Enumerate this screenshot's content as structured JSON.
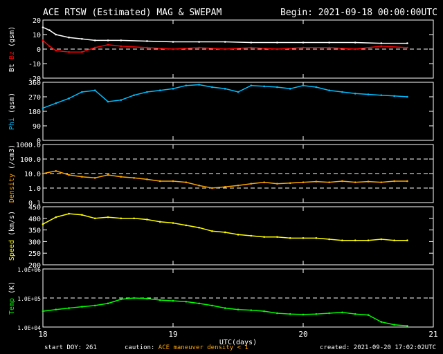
{
  "header": {
    "title": "ACE RTSW (Estimated) MAG & SWEPAM",
    "begin": "Begin: 2021-09-18 00:00:00UTC"
  },
  "footer": {
    "start_doy": "start DOY: 261",
    "caution_label": "caution:",
    "caution_maneuver": "ACE maneuver",
    "caution_density": "density < 1",
    "created": "created: 2021-09-20 17:02:02UTC"
  },
  "colors": {
    "bt": "#ffffff",
    "bz": "#ff0000",
    "phi": "#00bfff",
    "density": "#ffa500",
    "speed": "#ffff00",
    "temp": "#00ff00",
    "axis": "#ffffff",
    "dashed": "#ffffff"
  },
  "chart_data": {
    "type": "scatter",
    "x_axis": {
      "label": "UTC(days)",
      "ticks": [
        "18",
        "19",
        "20",
        "21"
      ],
      "range": [
        18,
        21
      ]
    },
    "panels": [
      {
        "id": "mag",
        "ylabel": [
          "Bt",
          "Bz",
          "(gsm)"
        ],
        "ylabel_colors": [
          "#ffffff",
          "#ff0000",
          "#ffffff"
        ],
        "ylim": [
          -20,
          20
        ],
        "yticks": [
          "20",
          "10",
          "0",
          "-10",
          "-20"
        ],
        "dashed": [
          0
        ],
        "series": [
          {
            "name": "Bt",
            "color": "#ffffff",
            "x": [
              18.0,
              18.05,
              18.1,
              18.2,
              18.3,
              18.4,
              18.5,
              18.6,
              18.8,
              19.0,
              19.2,
              19.4,
              19.6,
              19.8,
              20.0,
              20.2,
              20.4,
              20.6,
              20.8
            ],
            "y": [
              15,
              13,
              10,
              8,
              7,
              6,
              6,
              6,
              5.5,
              5,
              5,
              5,
              4.5,
              4.5,
              4.5,
              4.5,
              4.5,
              4,
              4
            ]
          },
          {
            "name": "Bz",
            "color": "#ff0000",
            "x": [
              18.0,
              18.05,
              18.1,
              18.2,
              18.3,
              18.4,
              18.5,
              18.6,
              18.8,
              19.0,
              19.2,
              19.4,
              19.6,
              19.8,
              20.0,
              20.2,
              20.4,
              20.6,
              20.8
            ],
            "y": [
              6,
              2,
              -1,
              -2,
              -2,
              1,
              3,
              2,
              1,
              0,
              1,
              0,
              1,
              0,
              1,
              1,
              0,
              2,
              1
            ]
          }
        ]
      },
      {
        "id": "phi",
        "ylabel": [
          "Phi",
          "(gsm)"
        ],
        "ylabel_colors": [
          "#00bfff",
          "#ffffff"
        ],
        "ylim": [
          0,
          360
        ],
        "yticks": [
          "360",
          "270",
          "180",
          "90",
          "0"
        ],
        "dashed": [],
        "series": [
          {
            "name": "Phi",
            "color": "#00bfff",
            "x": [
              18.0,
              18.1,
              18.2,
              18.3,
              18.4,
              18.5,
              18.6,
              18.7,
              18.8,
              18.9,
              19.0,
              19.1,
              19.2,
              19.3,
              19.4,
              19.5,
              19.6,
              19.7,
              19.8,
              19.9,
              20.0,
              20.1,
              20.2,
              20.3,
              20.4,
              20.5,
              20.6,
              20.7,
              20.8
            ],
            "y": [
              200,
              230,
              260,
              300,
              310,
              240,
              250,
              280,
              300,
              310,
              320,
              340,
              345,
              330,
              320,
              300,
              340,
              335,
              330,
              320,
              340,
              330,
              310,
              300,
              290,
              285,
              280,
              275,
              270
            ]
          }
        ]
      },
      {
        "id": "density",
        "ylabel": [
          "Density",
          "(/cm3)"
        ],
        "ylabel_colors": [
          "#ffa500",
          "#ffffff"
        ],
        "scale": "log",
        "ylim": [
          0.1,
          1000
        ],
        "yticks": [
          "1000.0",
          "100.0",
          "10.0",
          "1.0",
          "0.1"
        ],
        "dashed": [
          1.0,
          10.0,
          100.0
        ],
        "series": [
          {
            "name": "Density",
            "color": "#ffa500",
            "x": [
              18.0,
              18.1,
              18.2,
              18.3,
              18.4,
              18.5,
              18.6,
              18.7,
              18.8,
              18.9,
              19.0,
              19.1,
              19.2,
              19.3,
              19.4,
              19.5,
              19.6,
              19.7,
              19.8,
              19.9,
              20.0,
              20.1,
              20.2,
              20.3,
              20.4,
              20.5,
              20.6,
              20.7,
              20.8
            ],
            "y": [
              10,
              15,
              8,
              6,
              5,
              8,
              6,
              5,
              4,
              3,
              3,
              2.5,
              1.5,
              1,
              1.2,
              1.5,
              2,
              2.5,
              2,
              2.2,
              2.5,
              2.8,
              2.5,
              3,
              2.5,
              2.8,
              2.5,
              3,
              3
            ]
          }
        ]
      },
      {
        "id": "speed",
        "ylabel": [
          "Speed",
          "(km/s)"
        ],
        "ylabel_colors": [
          "#ffff00",
          "#ffffff"
        ],
        "ylim": [
          200,
          450
        ],
        "yticks": [
          "450",
          "400",
          "350",
          "300",
          "250",
          "200"
        ],
        "dashed": [],
        "series": [
          {
            "name": "Speed",
            "color": "#ffff00",
            "x": [
              18.0,
              18.1,
              18.2,
              18.3,
              18.4,
              18.5,
              18.6,
              18.7,
              18.8,
              18.9,
              19.0,
              19.1,
              19.2,
              19.3,
              19.4,
              19.5,
              19.6,
              19.7,
              19.8,
              19.9,
              20.0,
              20.1,
              20.2,
              20.3,
              20.4,
              20.5,
              20.6,
              20.7,
              20.8
            ],
            "y": [
              375,
              405,
              420,
              415,
              400,
              405,
              400,
              400,
              395,
              385,
              380,
              370,
              360,
              345,
              340,
              330,
              325,
              320,
              320,
              315,
              315,
              315,
              310,
              305,
              305,
              305,
              310,
              305,
              305
            ]
          }
        ]
      },
      {
        "id": "temp",
        "ylabel": [
          "Temp",
          "(K)"
        ],
        "ylabel_colors": [
          "#00ff00",
          "#ffffff"
        ],
        "scale": "log",
        "ylim": [
          10000,
          1000000
        ],
        "yticks": [
          "1.0E+06",
          "1.0E+05",
          "1.0E+04"
        ],
        "dashed": [
          100000
        ],
        "series": [
          {
            "name": "Temp",
            "color": "#00ff00",
            "x": [
              18.0,
              18.1,
              18.2,
              18.3,
              18.4,
              18.5,
              18.6,
              18.7,
              18.8,
              18.9,
              19.0,
              19.1,
              19.2,
              19.3,
              19.4,
              19.5,
              19.6,
              19.7,
              19.8,
              19.9,
              20.0,
              20.1,
              20.2,
              20.3,
              20.4,
              20.5,
              20.6,
              20.7,
              20.8
            ],
            "y": [
              35000,
              40000,
              45000,
              50000,
              55000,
              65000,
              90000,
              100000,
              95000,
              85000,
              80000,
              75000,
              65000,
              55000,
              45000,
              40000,
              38000,
              35000,
              30000,
              28000,
              27000,
              28000,
              30000,
              32000,
              28000,
              26000,
              15000,
              12000,
              11000
            ]
          }
        ]
      }
    ]
  }
}
